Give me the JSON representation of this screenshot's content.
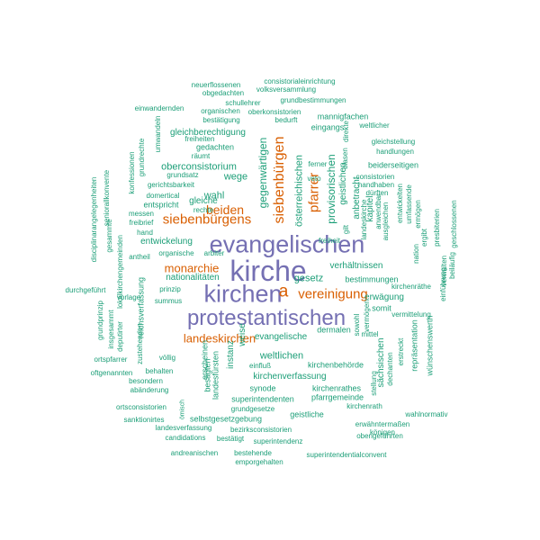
{
  "colors": {
    "large": "#7570b3",
    "medium": "#d95f02",
    "small": "#1b9e77"
  },
  "words": [
    {
      "text": "kirche",
      "tier": "large"
    },
    {
      "text": "evangelischen",
      "tier": "large"
    },
    {
      "text": "kirchen",
      "tier": "large"
    },
    {
      "text": "protestantischen",
      "tier": "large"
    },
    {
      "text": "a",
      "tier": "medium"
    },
    {
      "text": "siebenbürgen",
      "tier": "medium"
    },
    {
      "text": "siebenbürgens",
      "tier": "medium"
    },
    {
      "text": "vereinigung",
      "tier": "medium"
    },
    {
      "text": "pfarrer",
      "tier": "medium"
    },
    {
      "text": "beiden",
      "tier": "medium"
    },
    {
      "text": "monarchie",
      "tier": "medium"
    },
    {
      "text": "landeskirchen",
      "tier": "medium"
    },
    {
      "text": "provisorischen",
      "tier": "small"
    },
    {
      "text": "gegenwärtigen",
      "tier": "small"
    },
    {
      "text": "österreichischen",
      "tier": "small"
    },
    {
      "text": "wahl",
      "tier": "small"
    },
    {
      "text": "gesetz",
      "tier": "small"
    },
    {
      "text": "wege",
      "tier": "small"
    },
    {
      "text": "oberconsistorium",
      "tier": "small"
    },
    {
      "text": "entwickelung",
      "tier": "small"
    },
    {
      "text": "nationalitäten",
      "tier": "small"
    },
    {
      "text": "verhältnissen",
      "tier": "small"
    },
    {
      "text": "evangelische",
      "tier": "small"
    },
    {
      "text": "weltlichen",
      "tier": "small"
    },
    {
      "text": "kirchenverfassung",
      "tier": "small"
    },
    {
      "text": "gleiche",
      "tier": "small"
    },
    {
      "text": "entspricht",
      "tier": "small"
    },
    {
      "text": "reichsverfassung",
      "tier": "small"
    },
    {
      "text": "weise",
      "tier": "small"
    },
    {
      "text": "instanz",
      "tier": "small"
    },
    {
      "text": "erscheinen",
      "tier": "small"
    },
    {
      "text": "landesfürsten",
      "tier": "small"
    },
    {
      "text": "besagten",
      "tier": "small"
    },
    {
      "text": "synode",
      "tier": "small"
    },
    {
      "text": "superintendenten",
      "tier": "small"
    },
    {
      "text": "kirchenbehörde",
      "tier": "small"
    },
    {
      "text": "kirchenrathes",
      "tier": "small"
    },
    {
      "text": "pfarrgemeinde",
      "tier": "small"
    },
    {
      "text": "geistliche",
      "tier": "small"
    },
    {
      "text": "grundgesetze",
      "tier": "small"
    },
    {
      "text": "selbstgesetzgebung",
      "tier": "small"
    },
    {
      "text": "bezirksconsistorien",
      "tier": "small"
    },
    {
      "text": "superintendenz",
      "tier": "small"
    },
    {
      "text": "bestehende",
      "tier": "small"
    },
    {
      "text": "emporgehalten",
      "tier": "small"
    },
    {
      "text": "superintendentialconvent",
      "tier": "small"
    },
    {
      "text": "andreanischen",
      "tier": "small"
    },
    {
      "text": "bestätigt",
      "tier": "small"
    },
    {
      "text": "candidations",
      "tier": "small"
    },
    {
      "text": "landesverfassung",
      "tier": "small"
    },
    {
      "text": "sanktionirtes",
      "tier": "small"
    },
    {
      "text": "ortsconsistorien",
      "tier": "small"
    },
    {
      "text": "ömisch",
      "tier": "small"
    },
    {
      "text": "abänderung",
      "tier": "small"
    },
    {
      "text": "besondern",
      "tier": "small"
    },
    {
      "text": "behalten",
      "tier": "small"
    },
    {
      "text": "oftgenannten",
      "tier": "small"
    },
    {
      "text": "ortspfarrer",
      "tier": "small"
    },
    {
      "text": "völlig",
      "tier": "small"
    },
    {
      "text": "zustehenden",
      "tier": "small"
    },
    {
      "text": "deputirter",
      "tier": "small"
    },
    {
      "text": "insgesammt",
      "tier": "small"
    },
    {
      "text": "grundprinzip",
      "tier": "small"
    },
    {
      "text": "durchgeführt",
      "tier": "small"
    },
    {
      "text": "vorlage",
      "tier": "small"
    },
    {
      "text": "prinzip",
      "tier": "small"
    },
    {
      "text": "summus",
      "tier": "small"
    },
    {
      "text": "arbiter",
      "tier": "small"
    },
    {
      "text": "organische",
      "tier": "small"
    },
    {
      "text": "antheil",
      "tier": "small"
    },
    {
      "text": "lokalkirchengemeinden",
      "tier": "small"
    },
    {
      "text": "gesammte",
      "tier": "small"
    },
    {
      "text": "disciplinarangelegenheiten",
      "tier": "small"
    },
    {
      "text": "seniorallkonvente",
      "tier": "small"
    },
    {
      "text": "freibrief",
      "tier": "small"
    },
    {
      "text": "hand",
      "tier": "small"
    },
    {
      "text": "messen",
      "tier": "small"
    },
    {
      "text": "rechte",
      "tier": "small"
    },
    {
      "text": "domertical",
      "tier": "small"
    },
    {
      "text": "konfessionen",
      "tier": "small"
    },
    {
      "text": "grundrechte",
      "tier": "small"
    },
    {
      "text": "umwandeln",
      "tier": "small"
    },
    {
      "text": "einwandernden",
      "tier": "small"
    },
    {
      "text": "gerichtsbarkeit",
      "tier": "small"
    },
    {
      "text": "grundsatz",
      "tier": "small"
    },
    {
      "text": "gleichberechtigung",
      "tier": "small"
    },
    {
      "text": "gedachten",
      "tier": "small"
    },
    {
      "text": "räumt",
      "tier": "small"
    },
    {
      "text": "freiheiten",
      "tier": "small"
    },
    {
      "text": "bestätigung",
      "tier": "small"
    },
    {
      "text": "organischen",
      "tier": "small"
    },
    {
      "text": "obgedachten",
      "tier": "small"
    },
    {
      "text": "neuerflossenen",
      "tier": "small"
    },
    {
      "text": "schullehrer",
      "tier": "small"
    },
    {
      "text": "oberkonsistorien",
      "tier": "small"
    },
    {
      "text": "bedurft",
      "tier": "small"
    },
    {
      "text": "volksversammlung",
      "tier": "small"
    },
    {
      "text": "consistorialeinrichtung",
      "tier": "small"
    },
    {
      "text": "grundbestimmungen",
      "tier": "small"
    },
    {
      "text": "mannigfachen",
      "tier": "small"
    },
    {
      "text": "eingangs",
      "tier": "small"
    },
    {
      "text": "weltlicher",
      "tier": "small"
    },
    {
      "text": "direkte",
      "tier": "small"
    },
    {
      "text": "gleichstellung",
      "tier": "small"
    },
    {
      "text": "handlungen",
      "tier": "small"
    },
    {
      "text": "beiderseitigen",
      "tier": "small"
    },
    {
      "text": "consistorien",
      "tier": "small"
    },
    {
      "text": "handhaben",
      "tier": "small"
    },
    {
      "text": "dürften",
      "tier": "small"
    },
    {
      "text": "ferner",
      "tier": "small"
    },
    {
      "text": "blasen",
      "tier": "small"
    },
    {
      "text": "veto",
      "tier": "small"
    },
    {
      "text": "geistlichen",
      "tier": "small"
    },
    {
      "text": "gilt",
      "tier": "small"
    },
    {
      "text": "anbetracht",
      "tier": "small"
    },
    {
      "text": "kapitel",
      "tier": "small"
    },
    {
      "text": "landeskirche",
      "tier": "small"
    },
    {
      "text": "anwendbar",
      "tier": "small"
    },
    {
      "text": "ausgleichen",
      "tier": "small"
    },
    {
      "text": "nation",
      "tier": "small"
    },
    {
      "text": "ergibt",
      "tier": "small"
    },
    {
      "text": "entwickelten",
      "tier": "small"
    },
    {
      "text": "umfassende",
      "tier": "small"
    },
    {
      "text": "ermögen",
      "tier": "small"
    },
    {
      "text": "presbiterien",
      "tier": "small"
    },
    {
      "text": "geschlossenen",
      "tier": "small"
    },
    {
      "text": "verwalten",
      "tier": "small"
    },
    {
      "text": "beiläufig",
      "tier": "small"
    },
    {
      "text": "einführung",
      "tier": "small"
    },
    {
      "text": "freiheit",
      "tier": "small"
    },
    {
      "text": "bestimmungen",
      "tier": "small"
    },
    {
      "text": "erwägung",
      "tier": "small"
    },
    {
      "text": "somit",
      "tier": "small"
    },
    {
      "text": "vermögen",
      "tier": "small"
    },
    {
      "text": "sowohl",
      "tier": "small"
    },
    {
      "text": "dermalen",
      "tier": "small"
    },
    {
      "text": "vermittelung",
      "tier": "small"
    },
    {
      "text": "sächsischen",
      "tier": "small"
    },
    {
      "text": "dechanten",
      "tier": "small"
    },
    {
      "text": "erstreckt",
      "tier": "small"
    },
    {
      "text": "repräsentation",
      "tier": "small"
    },
    {
      "text": "wünschenswerth",
      "tier": "small"
    },
    {
      "text": "stellung",
      "tier": "small"
    },
    {
      "text": "kirchenrath",
      "tier": "small"
    },
    {
      "text": "wahlnormativ",
      "tier": "small"
    },
    {
      "text": "erwähntermaßen",
      "tier": "small"
    },
    {
      "text": "obengeführten",
      "tier": "small"
    },
    {
      "text": "königen",
      "tier": "small"
    },
    {
      "text": "einfluß",
      "tier": "small"
    },
    {
      "text": "kirchenräthe",
      "tier": "small"
    },
    {
      "text": "mittel",
      "tier": "small"
    }
  ]
}
